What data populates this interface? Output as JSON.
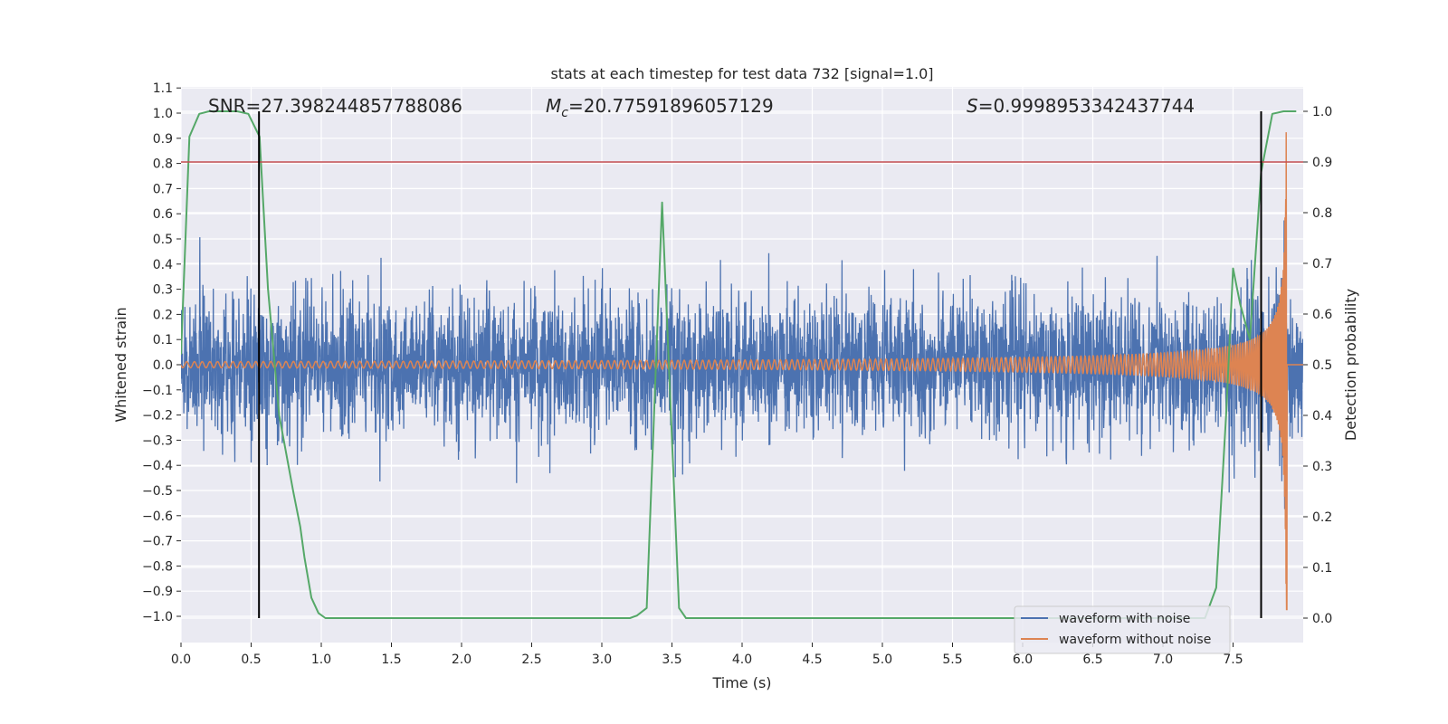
{
  "chart_data": {
    "type": "line",
    "title": "stats at each timestep for test data 732 [signal=1.0]",
    "xlabel": "Time (s)",
    "ylabel_left": "Whitened strain",
    "ylabel_right": "Detection probability",
    "xlim": [
      0.0,
      8.0
    ],
    "ylim_left": [
      -1.1,
      1.1
    ],
    "ylim_right": [
      -0.05,
      1.05
    ],
    "xticks": [
      "0.0",
      "0.5",
      "1.0",
      "1.5",
      "2.0",
      "2.5",
      "3.0",
      "3.5",
      "4.0",
      "4.5",
      "5.0",
      "5.5",
      "6.0",
      "6.5",
      "7.0",
      "7.5"
    ],
    "yticks_left": [
      "1.1",
      "1.0",
      "0.9",
      "0.8",
      "0.7",
      "0.6",
      "0.5",
      "0.4",
      "0.3",
      "0.2",
      "0.1",
      "0.0",
      "−0.1",
      "−0.2",
      "−0.3",
      "−0.4",
      "−0.5",
      "−0.6",
      "−0.7",
      "−0.8",
      "−0.9",
      "−1.0"
    ],
    "yticks_right": [
      "1.0",
      "0.9",
      "0.8",
      "0.7",
      "0.6",
      "0.5",
      "0.4",
      "0.3",
      "0.2",
      "0.1",
      "0.0"
    ],
    "annotations": {
      "snr": "SNR=27.398244857788086",
      "mc_label": "M",
      "mc_sub": "c",
      "mc_value": "=20.77591896057129",
      "s_label": "S",
      "s_value": "=0.9998953342437744"
    },
    "threshold": {
      "axis": "right",
      "value": 0.9,
      "color": "#c44e52"
    },
    "vertical_lines": [
      0.556,
      7.7
    ],
    "series": [
      {
        "name": "waveform with noise",
        "color": "#4c72b0",
        "axis": "left",
        "description": "noisy strain, amplitude roughly ±0.4 with peaks near ±0.6"
      },
      {
        "name": "waveform without noise",
        "color": "#dd8452",
        "axis": "left",
        "description": "chirp, amplitude grows from ~0.01 to ~1.0 near t=7.88"
      },
      {
        "name": "detection probability",
        "color": "#55a868",
        "axis": "right",
        "x": [
          0.0,
          0.06,
          0.13,
          0.2,
          0.3,
          0.4,
          0.48,
          0.56,
          0.62,
          0.7,
          0.8,
          0.85,
          0.88,
          0.93,
          0.98,
          1.03,
          1.2,
          1.6,
          2.0,
          2.5,
          3.0,
          3.2,
          3.25,
          3.32,
          3.43,
          3.55,
          3.6,
          3.8,
          4.2,
          5.0,
          6.0,
          7.0,
          7.3,
          7.38,
          7.45,
          7.5,
          7.55,
          7.62,
          7.7,
          7.78,
          7.86,
          7.95
        ],
        "y": [
          0.52,
          0.95,
          0.995,
          1.0,
          1.0,
          1.0,
          0.995,
          0.95,
          0.65,
          0.4,
          0.25,
          0.18,
          0.12,
          0.04,
          0.01,
          0.0,
          0.0,
          0.0,
          0.0,
          0.0,
          0.0,
          0.0,
          0.005,
          0.02,
          0.82,
          0.02,
          0.0,
          0.0,
          0.0,
          0.0,
          0.0,
          0.0,
          0.0,
          0.06,
          0.4,
          0.69,
          0.62,
          0.55,
          0.88,
          0.995,
          1.0,
          1.0
        ]
      }
    ],
    "legend": [
      "waveform with noise",
      "waveform without noise"
    ],
    "legend_position": "lower-right",
    "grid": true
  }
}
